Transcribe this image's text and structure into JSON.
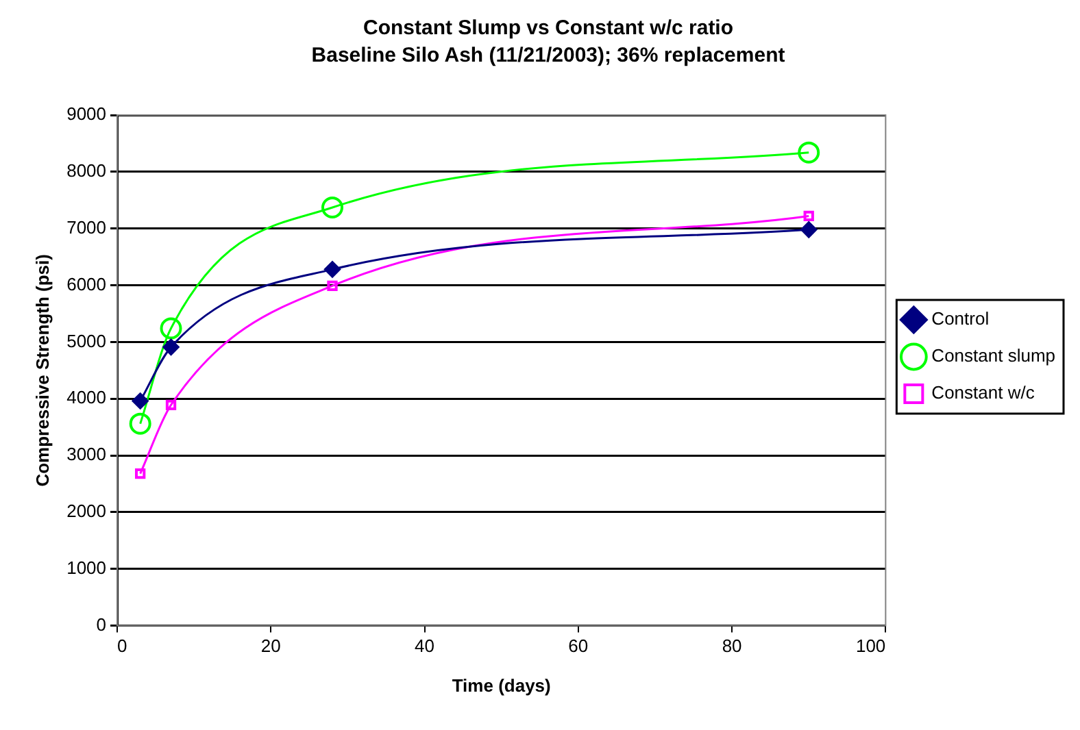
{
  "chart_data": {
    "type": "line",
    "title": "Constant Slump vs Constant w/c ratio",
    "subtitle": "Baseline Silo Ash (11/21/2003); 36% replacement",
    "xlabel": "Time (days)",
    "ylabel": "Compressive Strength (psi)",
    "xlim": [
      0,
      100
    ],
    "xticks": [
      0,
      20,
      40,
      60,
      80,
      100
    ],
    "ylim": [
      0,
      9000
    ],
    "yticks": [
      0,
      1000,
      2000,
      3000,
      4000,
      5000,
      6000,
      7000,
      8000,
      9000
    ],
    "grid": "y",
    "legend": "right",
    "x": [
      3,
      7,
      28,
      90
    ],
    "series": [
      {
        "name": "Control",
        "color": "#000080",
        "marker": "diamond",
        "values": [
          3960,
          4910,
          6280,
          6980
        ]
      },
      {
        "name": "Constant slump",
        "color": "#00ff00",
        "marker": "circle",
        "values": [
          3560,
          5240,
          7370,
          8340
        ]
      },
      {
        "name": "Constant w/c",
        "color": "#ff00ff",
        "marker": "square",
        "values": [
          2680,
          3890,
          5990,
          7220
        ]
      }
    ]
  }
}
